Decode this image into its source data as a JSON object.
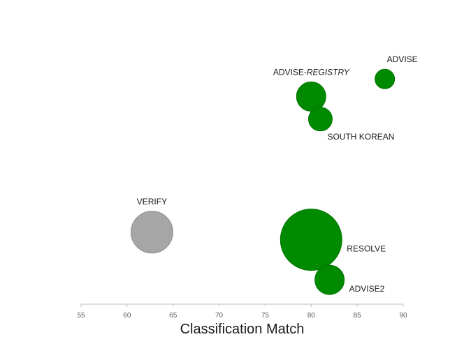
{
  "chart_data": {
    "type": "scatter",
    "subtype": "bubble",
    "title": "",
    "xlabel": "Classification Match",
    "ylabel": "",
    "xlim": [
      55,
      90
    ],
    "xticks": [
      55,
      60,
      65,
      70,
      75,
      80,
      85,
      90
    ],
    "grid": false,
    "legend": "none",
    "colors": {
      "green": "#008a00",
      "gray": "#a6a6a6"
    },
    "points": [
      {
        "label": "ADVISE",
        "label_italic": "",
        "x": 88,
        "y": 88,
        "size": 14,
        "color": "#008a00",
        "label_pos": "above"
      },
      {
        "label": "ADVISE-",
        "label_italic": "REGISTRY",
        "x": 80,
        "y": 81,
        "size": 21,
        "color": "#008a00",
        "label_pos": "above"
      },
      {
        "label": "SOUTH KOREAN",
        "label_italic": "",
        "x": 81,
        "y": 72,
        "size": 17,
        "color": "#008a00",
        "label_pos": "below-right"
      },
      {
        "label": "VERIFY",
        "label_italic": "",
        "x": 62.7,
        "y": 27,
        "size": 30,
        "color": "#a6a6a6",
        "label_pos": "above"
      },
      {
        "label": "RESOLVE",
        "label_italic": "",
        "x": 80,
        "y": 24,
        "size": 44,
        "color": "#008a00",
        "label_pos": "right"
      },
      {
        "label": "ADVISE2",
        "label_italic": "",
        "x": 82,
        "y": 8,
        "size": 21,
        "color": "#008a00",
        "label_pos": "right"
      }
    ]
  }
}
